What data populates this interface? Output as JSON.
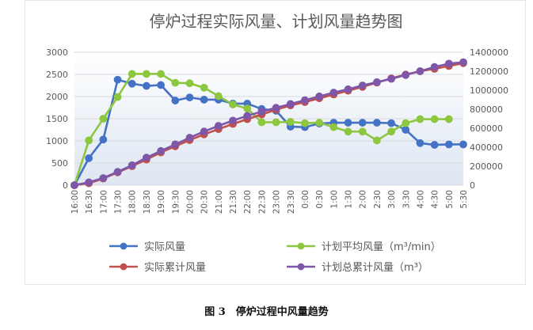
{
  "chart_data": {
    "type": "line",
    "title": "停炉过程实际风量、计划风量趋势图",
    "x": [
      "16:00",
      "16:30",
      "17:00",
      "17:30",
      "18:00",
      "18:30",
      "19:00",
      "19:30",
      "20:00",
      "20:30",
      "21:00",
      "21:30",
      "22:00",
      "22:30",
      "23:00",
      "23:30",
      "0:00",
      "0:30",
      "1:00",
      "1:30",
      "2:00",
      "2:30",
      "3:00",
      "3:30",
      "4:00",
      "4:30",
      "5:00",
      "5:30"
    ],
    "y_left": {
      "min": 0,
      "max": 3000,
      "ticks": [
        0,
        500,
        1000,
        1500,
        2000,
        2500,
        3000
      ]
    },
    "y_right": {
      "min": 0,
      "max": 1400000,
      "ticks": [
        0,
        200000,
        400000,
        600000,
        800000,
        1000000,
        1200000,
        1400000
      ]
    },
    "grid": "horizontal",
    "legend_position": "bottom",
    "series": [
      {
        "name": "实际风量",
        "axis": "left",
        "color": "#4472C4",
        "values": [
          0,
          610,
          1030,
          2380,
          2290,
          2240,
          2260,
          1910,
          1980,
          1930,
          1930,
          1840,
          1840,
          1720,
          1680,
          1320,
          1310,
          1390,
          1410,
          1410,
          1410,
          1410,
          1400,
          1250,
          950,
          910,
          920,
          920
        ]
      },
      {
        "name": "计划平均风量（m³/min）",
        "axis": "left",
        "color": "#8DC63F",
        "values": [
          0,
          1010,
          1500,
          1990,
          2510,
          2510,
          2510,
          2310,
          2300,
          2200,
          2010,
          1820,
          1730,
          1420,
          1420,
          1430,
          1400,
          1410,
          1310,
          1210,
          1210,
          1010,
          1210,
          1400,
          1490,
          1490,
          1490,
          null
        ]
      },
      {
        "name": "实际累计风量",
        "axis": "right",
        "color": "#C0504D",
        "values": [
          0,
          20000,
          70000,
          135000,
          200000,
          270000,
          345000,
          410000,
          475000,
          535000,
          590000,
          645000,
          695000,
          745000,
          795000,
          840000,
          875000,
          915000,
          955000,
          995000,
          1035000,
          1080000,
          1125000,
          1165000,
          1200000,
          1225000,
          1255000,
          1285000
        ]
      },
      {
        "name": "计划总累计风量（m³）",
        "axis": "right",
        "color": "#7E57A9",
        "values": [
          0,
          30000,
          75000,
          140000,
          210000,
          290000,
          360000,
          430000,
          500000,
          565000,
          625000,
          680000,
          730000,
          775000,
          815000,
          855000,
          895000,
          935000,
          975000,
          1010000,
          1050000,
          1085000,
          1120000,
          1160000,
          1200000,
          1245000,
          1280000,
          1295000
        ]
      }
    ]
  },
  "caption": "图 3　停炉过程中风量趋势"
}
